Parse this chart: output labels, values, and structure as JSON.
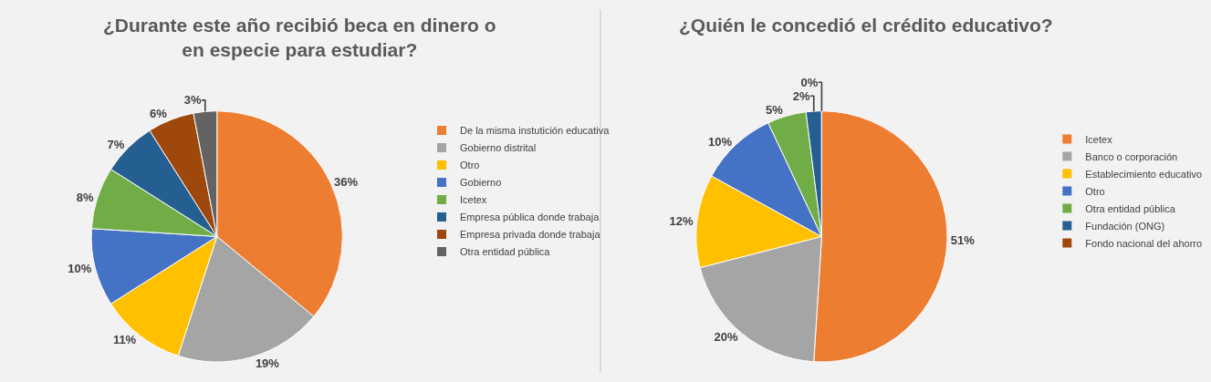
{
  "chart_data": [
    {
      "type": "pie",
      "title": "¿Durante este año recibió beca en dinero o en especie para estudiar?",
      "legend": "right",
      "categories": [
        "De la misma instutición educativa",
        "Gobierno distrital",
        "Otro",
        "Gobierno",
        "Icetex",
        "Empresa pública donde trabaja",
        "Empresa privada donde trabaja",
        "Otra entidad pública"
      ],
      "values": [
        36,
        19,
        11,
        10,
        8,
        7,
        6,
        3
      ],
      "value_labels": [
        "36%",
        "19%",
        "11%",
        "10%",
        "8%",
        "7%",
        "6%",
        "3%"
      ],
      "colors": [
        "#ed7d31",
        "#a5a5a5",
        "#ffc000",
        "#4472c4",
        "#70ad47",
        "#255e91",
        "#9e480e",
        "#636363"
      ]
    },
    {
      "type": "pie",
      "title": "¿Quién le concedió el crédito educativo?",
      "legend": "right",
      "categories": [
        "Icetex",
        "Banco o corporación",
        "Establecimiento educativo",
        "Otro",
        "Otra entidad pública",
        "Fundación (ONG)",
        "Fondo nacional del ahorro"
      ],
      "values": [
        51,
        20,
        12,
        10,
        5,
        2,
        0
      ],
      "value_labels": [
        "51%",
        "20%",
        "12%",
        "10%",
        "5%",
        "2%",
        "0%"
      ],
      "colors": [
        "#ed7d31",
        "#a5a5a5",
        "#ffc000",
        "#4472c4",
        "#70ad47",
        "#255e91",
        "#9e480e"
      ]
    }
  ]
}
